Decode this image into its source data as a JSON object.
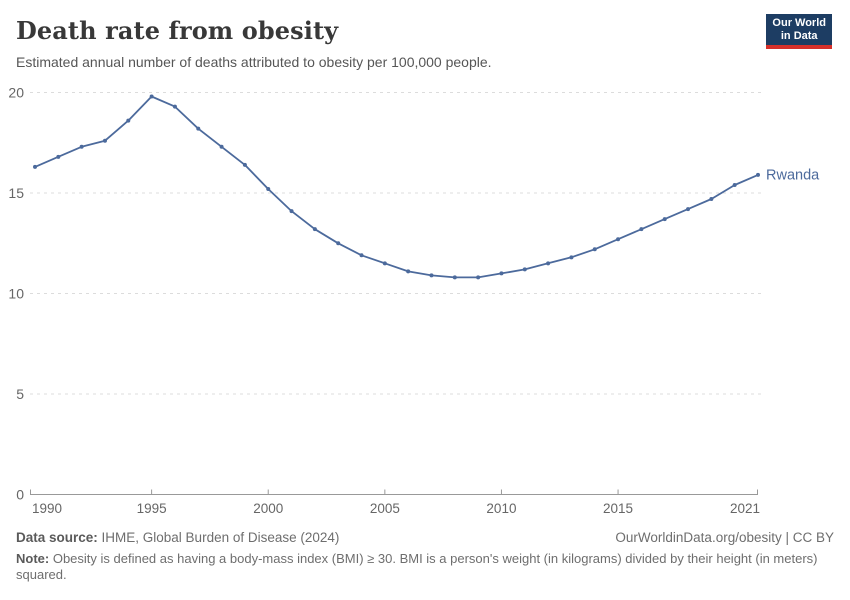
{
  "header": {
    "title": "Death rate from obesity",
    "subtitle": "Estimated annual number of deaths attributed to obesity per 100,000 people.",
    "logo_line1": "Our World",
    "logo_line2": "in Data",
    "logo_bg_color": "#1d3d63",
    "logo_stripe_color": "#d7302a"
  },
  "chart_data": {
    "type": "line",
    "title": "Death rate from obesity",
    "subtitle": "Estimated annual number of deaths attributed to obesity per 100,000 people.",
    "x": [
      1990,
      1991,
      1992,
      1993,
      1994,
      1995,
      1996,
      1997,
      1998,
      1999,
      2000,
      2001,
      2002,
      2003,
      2004,
      2005,
      2006,
      2007,
      2008,
      2009,
      2010,
      2011,
      2012,
      2013,
      2014,
      2015,
      2016,
      2017,
      2018,
      2019,
      2020,
      2021
    ],
    "series": [
      {
        "name": "Rwanda",
        "color": "#4c6a9c",
        "values": [
          16.3,
          16.8,
          17.3,
          17.6,
          18.6,
          19.8,
          19.3,
          18.2,
          17.3,
          16.4,
          15.2,
          14.1,
          13.2,
          12.5,
          11.9,
          11.5,
          11.1,
          10.9,
          10.8,
          10.8,
          11.0,
          11.2,
          11.5,
          11.8,
          12.2,
          12.7,
          13.2,
          13.7,
          14.2,
          14.7,
          15.4,
          15.9
        ]
      }
    ],
    "xlabel": "",
    "ylabel": "",
    "xlim": [
      1990,
      2021
    ],
    "ylim": [
      0,
      20
    ],
    "xticks": [
      1990,
      1995,
      2000,
      2005,
      2010,
      2015,
      2021
    ],
    "yticks": [
      0,
      5,
      10,
      15,
      20
    ],
    "grid": "horizontal-dashed",
    "legend_position": "end-of-line-label",
    "end_label": "Rwanda",
    "grid_color": "#dcdcdc",
    "axis_color": "#999999",
    "tick_label_color": "#666666"
  },
  "footer": {
    "datasource_label": "Data source:",
    "datasource_value": " IHME, Global Burden of Disease (2024)",
    "license": "OurWorldinData.org/obesity | CC BY",
    "note_label": "Note:",
    "note_value": " Obesity is defined as having a body-mass index (BMI) ≥ 30. BMI is a person's weight (in kilograms) divided by their height (in meters) squared."
  }
}
